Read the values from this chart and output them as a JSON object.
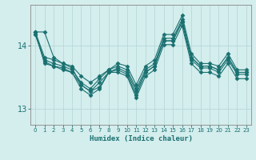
{
  "xlabel": "Humidex (Indice chaleur)",
  "ylabel": "",
  "background_color": "#d4eded",
  "grid_color": "#b8d8d8",
  "line_color": "#1a7070",
  "xlim": [
    -0.5,
    23.5
  ],
  "ylim": [
    12.75,
    14.65
  ],
  "yticks": [
    13,
    14
  ],
  "xticks": [
    0,
    1,
    2,
    3,
    4,
    5,
    6,
    7,
    8,
    9,
    10,
    11,
    12,
    13,
    14,
    15,
    16,
    17,
    18,
    19,
    20,
    21,
    22,
    23
  ],
  "lines": [
    [
      14.22,
      14.22,
      13.82,
      13.72,
      13.65,
      13.38,
      13.28,
      13.35,
      13.58,
      13.62,
      13.55,
      13.22,
      13.58,
      13.68,
      14.08,
      14.08,
      14.38,
      13.82,
      13.68,
      13.68,
      13.62,
      13.82,
      13.58,
      13.58
    ],
    [
      14.18,
      13.78,
      13.72,
      13.68,
      13.62,
      13.42,
      13.32,
      13.48,
      13.62,
      13.68,
      13.62,
      13.32,
      13.62,
      13.72,
      14.12,
      14.12,
      14.42,
      13.82,
      13.68,
      13.68,
      13.62,
      13.82,
      13.58,
      13.58
    ],
    [
      14.18,
      13.75,
      13.68,
      13.65,
      13.58,
      13.38,
      13.28,
      13.42,
      13.58,
      13.65,
      13.58,
      13.28,
      13.58,
      13.68,
      14.08,
      14.08,
      14.38,
      13.78,
      13.65,
      13.65,
      13.58,
      13.78,
      13.55,
      13.55
    ],
    [
      14.22,
      13.82,
      13.78,
      13.72,
      13.68,
      13.52,
      13.42,
      13.52,
      13.62,
      13.72,
      13.68,
      13.38,
      13.68,
      13.78,
      14.18,
      14.18,
      14.48,
      13.88,
      13.72,
      13.72,
      13.68,
      13.88,
      13.62,
      13.62
    ],
    [
      14.22,
      13.72,
      13.68,
      13.62,
      13.58,
      13.32,
      13.22,
      13.32,
      13.58,
      13.58,
      13.52,
      13.18,
      13.52,
      13.62,
      14.02,
      14.02,
      14.32,
      13.72,
      13.58,
      13.58,
      13.52,
      13.72,
      13.48,
      13.48
    ]
  ],
  "marker": "D",
  "markersize": 2.5,
  "linewidth": 0.8
}
